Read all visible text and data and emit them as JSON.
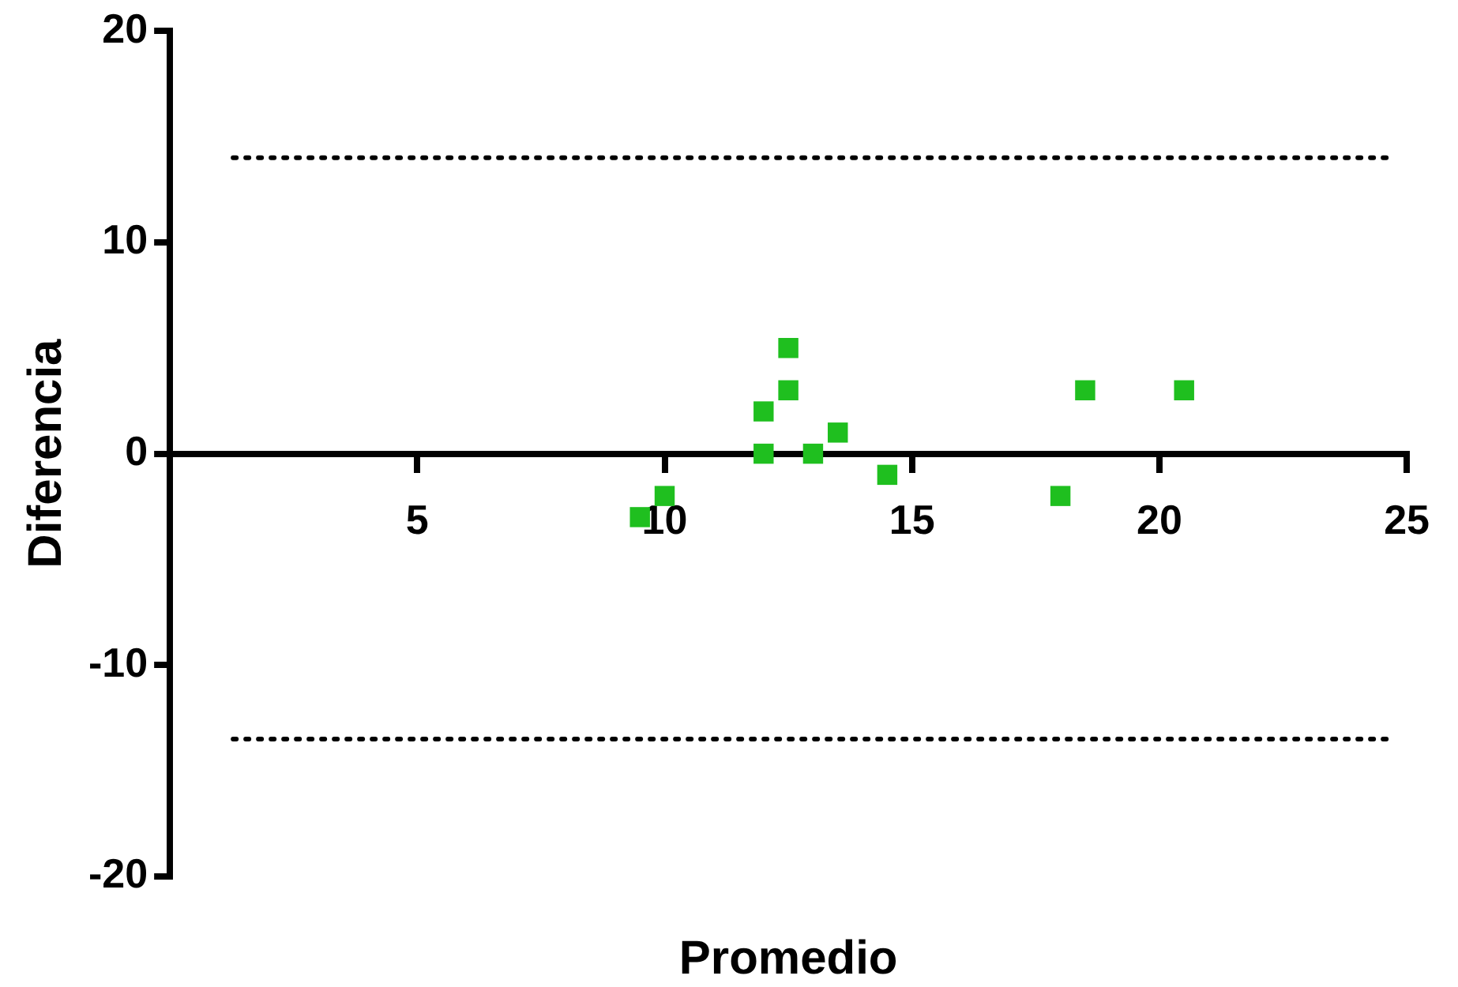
{
  "chart_data": {
    "type": "scatter",
    "xlabel": "Promedio",
    "ylabel": "Diferencia",
    "series": [
      {
        "color": "#1fbf1f",
        "x": [
          9.5,
          10,
          12,
          12,
          12.5,
          12.5,
          13,
          13.5,
          14.5,
          18,
          18.5,
          20.5
        ],
        "values": [
          -3,
          -2,
          2,
          0,
          5,
          3,
          0,
          1,
          -1,
          -2,
          3,
          3
        ]
      }
    ],
    "xlim": [
      0,
      25
    ],
    "xticks": [
      5,
      10,
      15,
      20,
      25
    ],
    "ylim": [
      -20,
      20
    ],
    "yticks": [
      -20,
      -10,
      0,
      10,
      20
    ],
    "ref_lines": [
      {
        "axis": "y",
        "value": 14,
        "line_style": "dotted"
      },
      {
        "axis": "y",
        "value": -13.5,
        "line_style": "dotted"
      }
    ],
    "marker": "square",
    "grid": false,
    "legend": false
  }
}
